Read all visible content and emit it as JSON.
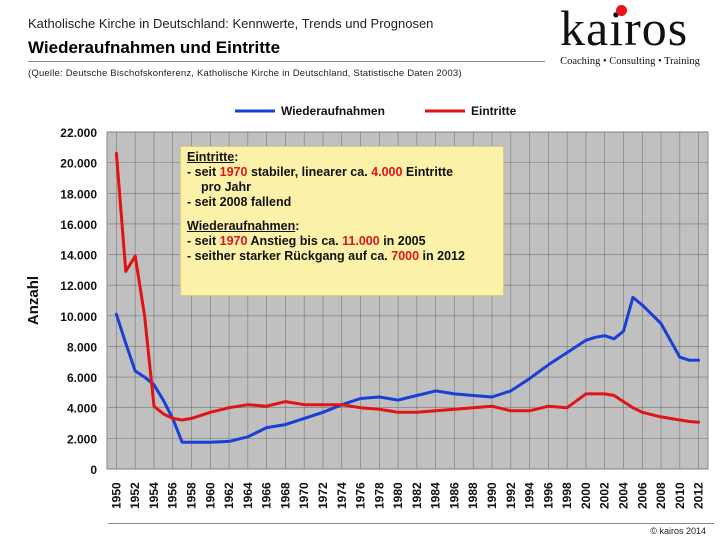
{
  "header": {
    "supertitle": "Katholische Kirche in Deutschland: Kennwerte, Trends und Prognosen",
    "title": "Wiederaufnahmen und Eintritte",
    "source": "(Quelle: Deutsche Bischofskonferenz, Katholische Kirche in Deutschland, Statistische Daten 2003)"
  },
  "logo": {
    "word": "kairos",
    "tagline": "Coaching • Consulting • Training",
    "dot_color": "#e8141a"
  },
  "footer": {
    "copyright": "© kairos 2014"
  },
  "annotation": {
    "eintritte_heading": "Eintritte",
    "eintritte_colon": ":",
    "line1_a": "- seit ",
    "line1_year": "1970",
    "line1_b": " stabiler, linearer ca. ",
    "line1_value": "4.000",
    "line1_c": " Eintritte",
    "line2": "pro Jahr",
    "line3": "- seit 2008 fallend",
    "wieder_heading": "Wiederaufnahmen",
    "wieder_colon": ":",
    "line4_a": "- seit ",
    "line4_year": "1970",
    "line4_b": " Anstieg bis ca. ",
    "line4_value": "11.000",
    "line4_c": " in 2005",
    "line5_a": "- seither starker Rückgang auf ca. ",
    "line5_value": "7000",
    "line5_b": " in 2012",
    "accent_color": "#e1141b"
  },
  "chart_data": {
    "type": "line",
    "title": "",
    "xlabel": "",
    "ylabel": "Anzahl",
    "xlim": [
      1949,
      2013
    ],
    "ylim": [
      0,
      22000
    ],
    "x_ticks": [
      1950,
      1952,
      1954,
      1956,
      1958,
      1960,
      1962,
      1964,
      1966,
      1968,
      1970,
      1972,
      1974,
      1976,
      1978,
      1980,
      1982,
      1984,
      1986,
      1988,
      1990,
      1992,
      1994,
      1996,
      1998,
      2000,
      2002,
      2004,
      2006,
      2008,
      2010,
      2012
    ],
    "y_ticks": [
      0,
      2000,
      4000,
      6000,
      8000,
      10000,
      12000,
      14000,
      16000,
      18000,
      20000,
      22000
    ],
    "y_tick_labels": [
      "0",
      "2.000",
      "4.000",
      "6.000",
      "8.000",
      "10.000",
      "12.000",
      "14.000",
      "16.000",
      "18.000",
      "20.000",
      "22.000"
    ],
    "grid": true,
    "legend_position": "top",
    "plot_background": "#c0c0c0",
    "series": [
      {
        "name": "Wiederaufnahmen",
        "color": "#1a3fd6",
        "x": [
          1950,
          1951,
          1952,
          1953,
          1954,
          1955,
          1956,
          1957,
          1958,
          1960,
          1962,
          1964,
          1966,
          1968,
          1970,
          1972,
          1974,
          1976,
          1978,
          1980,
          1982,
          1984,
          1985,
          1986,
          1988,
          1990,
          1992,
          1994,
          1996,
          1998,
          2000,
          2001,
          2002,
          2003,
          2004,
          2005,
          2006,
          2008,
          2010,
          2011,
          2012
        ],
        "values": [
          10100,
          8200,
          6400,
          6000,
          5500,
          4500,
          3300,
          1750,
          1750,
          1750,
          1800,
          2100,
          2700,
          2900,
          3300,
          3700,
          4200,
          4600,
          4700,
          4500,
          4800,
          5100,
          5000,
          4900,
          4800,
          4700,
          5100,
          5900,
          6800,
          7600,
          8400,
          8600,
          8700,
          8500,
          9000,
          11200,
          10700,
          9500,
          7300,
          7100,
          7100
        ]
      },
      {
        "name": "Eintritte",
        "color": "#e01414",
        "x": [
          1950,
          1951,
          1952,
          1953,
          1954,
          1955,
          1956,
          1957,
          1958,
          1960,
          1962,
          1964,
          1966,
          1968,
          1970,
          1972,
          1974,
          1976,
          1978,
          1980,
          1982,
          1984,
          1986,
          1988,
          1990,
          1992,
          1994,
          1996,
          1998,
          2000,
          2002,
          2003,
          2004,
          2005,
          2006,
          2008,
          2010,
          2011,
          2012
        ],
        "values": [
          20600,
          12900,
          13900,
          10000,
          4100,
          3600,
          3300,
          3200,
          3300,
          3700,
          4000,
          4200,
          4100,
          4400,
          4200,
          4200,
          4200,
          4000,
          3900,
          3700,
          3700,
          3800,
          3900,
          4000,
          4100,
          3800,
          3800,
          4100,
          4000,
          4900,
          4900,
          4800,
          4400,
          4000,
          3700,
          3400,
          3200,
          3100,
          3050
        ]
      }
    ]
  }
}
